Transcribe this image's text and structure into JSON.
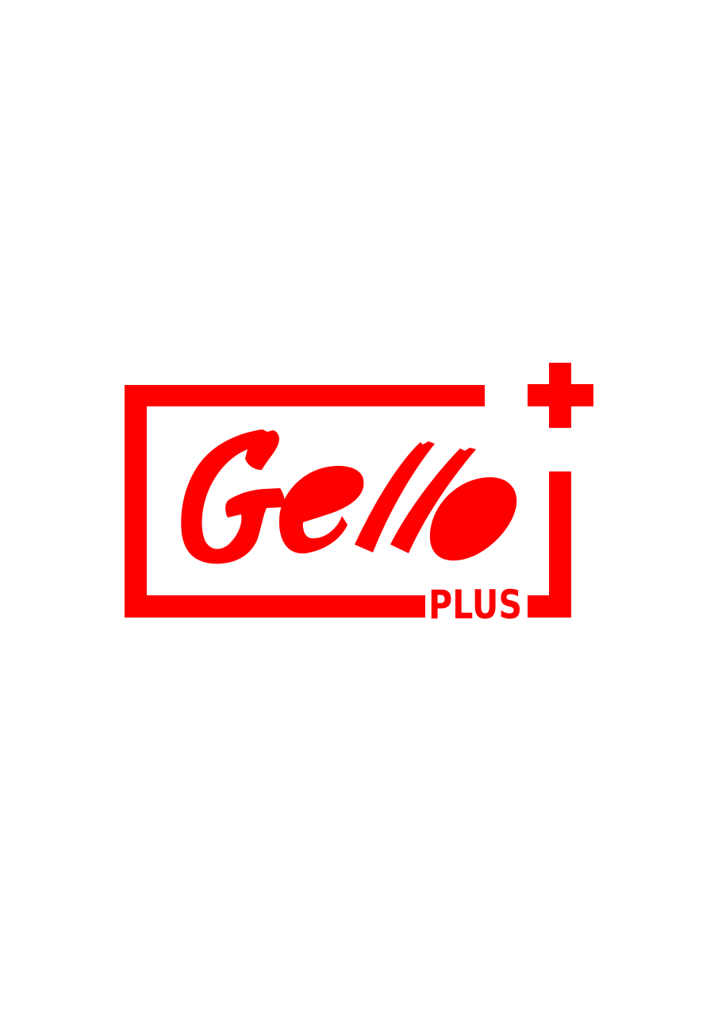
{
  "logo": {
    "wordmark": "Gello",
    "subtitle": "PLUS",
    "brand_color": "#ff0000",
    "background_color": "#ffffff",
    "icon": "plus-sign-icon"
  }
}
